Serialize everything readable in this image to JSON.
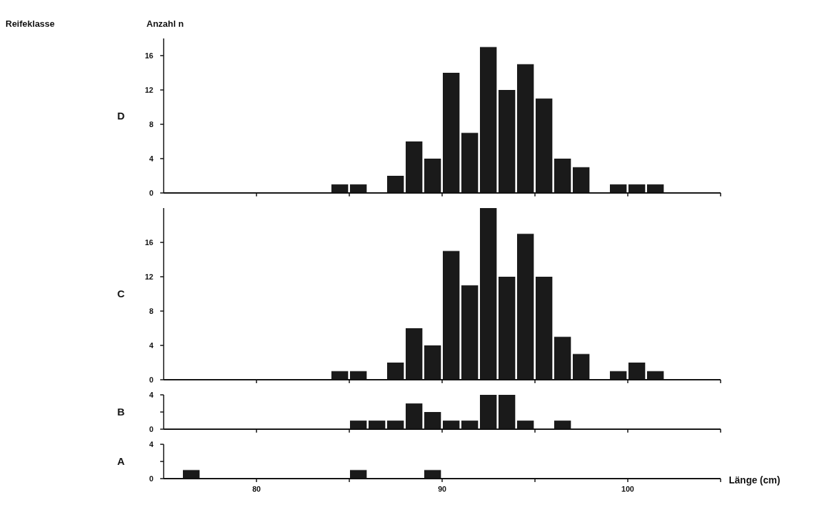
{
  "chart_data": [
    {
      "type": "histogram",
      "title": "D",
      "ylabel": "Anzahl n",
      "annotations": [
        "Reifeklasse"
      ],
      "color": "#1a1a1a",
      "bins": [
        75,
        76,
        77,
        78,
        79,
        80,
        81,
        82,
        83,
        84,
        85,
        86,
        87,
        88,
        89,
        90,
        91,
        92,
        93,
        94,
        95,
        96,
        97,
        98,
        99,
        100,
        101,
        102,
        103,
        104,
        105
      ],
      "values": [
        0,
        0,
        0,
        0,
        0,
        0,
        0,
        0,
        0,
        1,
        1,
        0,
        2,
        6,
        4,
        14,
        7,
        17,
        12,
        15,
        11,
        4,
        3,
        0,
        1,
        1,
        1,
        0,
        0,
        0
      ],
      "xlim": [
        75,
        105
      ],
      "xticks": [
        80,
        {
          "value": 85,
          "label": null
        },
        90,
        {
          "value": 95,
          "label": null
        },
        100,
        {
          "value": 105,
          "label": null
        }
      ],
      "ylim": [
        0,
        18
      ],
      "yticks": [
        0,
        4,
        8,
        12,
        16
      ],
      "tick_labels": "y"
    },
    {
      "type": "histogram",
      "title": "C",
      "color": "#1a1a1a",
      "bins": [
        75,
        76,
        77,
        78,
        79,
        80,
        81,
        82,
        83,
        84,
        85,
        86,
        87,
        88,
        89,
        90,
        91,
        92,
        93,
        94,
        95,
        96,
        97,
        98,
        99,
        100,
        101,
        102,
        103,
        104,
        105
      ],
      "values": [
        0,
        0,
        0,
        0,
        0,
        0,
        0,
        0,
        0,
        1,
        1,
        0,
        2,
        6,
        4,
        15,
        11,
        20,
        12,
        17,
        12,
        5,
        3,
        0,
        1,
        2,
        1,
        0,
        0,
        0
      ],
      "xlim": [
        75,
        105
      ],
      "xticks": [
        80,
        {
          "value": 85,
          "label": null
        },
        90,
        {
          "value": 95,
          "label": null
        },
        100,
        {
          "value": 105,
          "label": null
        }
      ],
      "ylim": [
        0,
        20
      ],
      "yticks": [
        0,
        4,
        8,
        12,
        16
      ],
      "tick_labels": "y"
    },
    {
      "type": "histogram",
      "title": "B",
      "color": "#1a1a1a",
      "bins": [
        75,
        76,
        77,
        78,
        79,
        80,
        81,
        82,
        83,
        84,
        85,
        86,
        87,
        88,
        89,
        90,
        91,
        92,
        93,
        94,
        95,
        96,
        97,
        98,
        99,
        100,
        101,
        102,
        103,
        104,
        105
      ],
      "values": [
        0,
        0,
        0,
        0,
        0,
        0,
        0,
        0,
        0,
        0,
        1,
        1,
        1,
        3,
        2,
        1,
        1,
        4,
        4,
        1,
        0,
        1,
        0,
        0,
        0,
        0,
        0,
        0,
        0,
        0
      ],
      "xlim": [
        75,
        105
      ],
      "xticks": [
        80,
        {
          "value": 85,
          "label": null
        },
        90,
        {
          "value": 95,
          "label": null
        },
        100,
        {
          "value": 105,
          "label": null
        }
      ],
      "ylim": [
        0,
        4
      ],
      "yticks": [
        0,
        {
          "value": 2,
          "label": null
        },
        4
      ],
      "tick_labels": "y"
    },
    {
      "type": "histogram",
      "title": "A",
      "xlabel": "Länge (cm)",
      "color": "#1a1a1a",
      "bins": [
        75,
        76,
        77,
        78,
        79,
        80,
        81,
        82,
        83,
        84,
        85,
        86,
        87,
        88,
        89,
        90,
        91,
        92,
        93,
        94,
        95,
        96,
        97,
        98,
        99,
        100,
        101,
        102,
        103,
        104,
        105
      ],
      "values": [
        0,
        1,
        0,
        0,
        0,
        0,
        0,
        0,
        0,
        0,
        1,
        0,
        0,
        0,
        1,
        0,
        0,
        0,
        0,
        0,
        0,
        0,
        0,
        0,
        0,
        0,
        0,
        0,
        0,
        0
      ],
      "xlim": [
        75,
        105
      ],
      "xticks": [
        80,
        {
          "value": 85,
          "label": null
        },
        90,
        {
          "value": 95,
          "label": null
        },
        100,
        {
          "value": 105,
          "label": null
        }
      ],
      "ylim": [
        0,
        4
      ],
      "yticks": [
        0,
        {
          "value": 2,
          "label": null
        },
        4
      ]
    }
  ]
}
